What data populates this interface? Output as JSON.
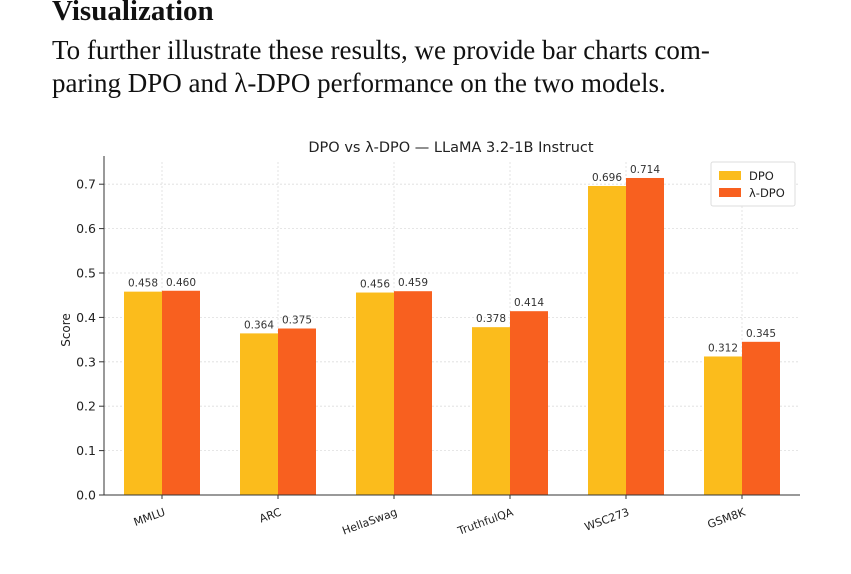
{
  "section": {
    "heading": "Visualization",
    "line1": "To further illustrate these results, we provide bar charts com-",
    "line2": "paring DPO and λ-DPO performance on the two models."
  },
  "colors": {
    "dpo": "#fbbc1c",
    "lambda_dpo": "#f8601f",
    "grid": "#dddddd",
    "axis": "#333333"
  },
  "chart_data": {
    "type": "bar",
    "title": "DPO vs λ-DPO — LLaMA 3.2-1B Instruct",
    "xlabel": "",
    "ylabel": "Score",
    "ylim": [
      0,
      0.75
    ],
    "yticks": [
      "0.0",
      "0.1",
      "0.2",
      "0.3",
      "0.4",
      "0.5",
      "0.6",
      "0.7"
    ],
    "categories": [
      "MMLU",
      "ARC",
      "HellaSwag",
      "TruthfulQA",
      "WSC273",
      "GSM8K"
    ],
    "series": [
      {
        "name": "DPO",
        "values": [
          0.458,
          0.364,
          0.456,
          0.378,
          0.696,
          0.312
        ]
      },
      {
        "name": "λ-DPO",
        "values": [
          0.46,
          0.375,
          0.459,
          0.414,
          0.714,
          0.345
        ]
      }
    ],
    "data_labels": true,
    "grid": true,
    "legend": "top-right"
  }
}
